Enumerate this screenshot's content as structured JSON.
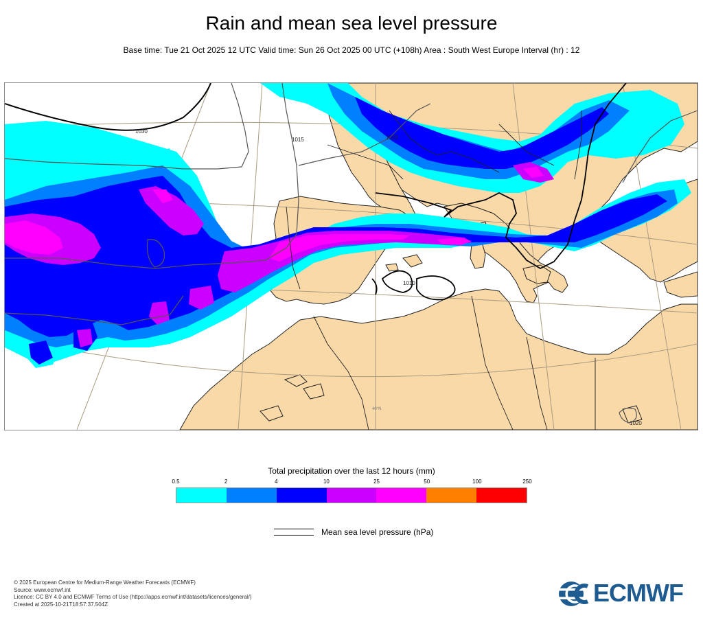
{
  "header": {
    "title": "Rain and mean sea level pressure",
    "subtitle": "Base time: Tue 21 Oct 2025 12 UTC Valid time: Sun 26 Oct 2025 00 UTC (+108h) Area : South West Europe Interval (hr) : 12"
  },
  "map": {
    "isobar_labels": [
      "1030",
      "1020",
      "1015",
      "1010",
      "1020"
    ],
    "graticule_labels": [
      "40°N"
    ]
  },
  "legend": {
    "title": "Total precipitation over the last 12 hours (mm)",
    "ticks": [
      "0.5",
      "2",
      "4",
      "10",
      "25",
      "50",
      "100",
      "250"
    ],
    "colors": [
      "#00ffff",
      "#0080ff",
      "#0000ff",
      "#cc00ff",
      "#ff00ff",
      "#ff8000",
      "#ff0000"
    ],
    "isobar_label": "Mean sea level pressure (hPa)"
  },
  "footer": {
    "line1": "© 2025 European Centre for Medium-Range Weather Forecasts (ECMWF)",
    "line2": "Source: www.ecmwf.int",
    "line3": "Licence: CC BY 4.0 and ECMWF Terms of Use (https://apps.ecmwf.int/datasets/licences/general/)",
    "line4": "Created at 2025-10-21T18:57:37.504Z"
  },
  "logo": {
    "text": "ECMWF",
    "color": "#1e5b90"
  },
  "colors": {
    "land": "#f9d9a8",
    "sea": "#ffffff",
    "coast": "#222222",
    "graticule": "#a89a80"
  }
}
